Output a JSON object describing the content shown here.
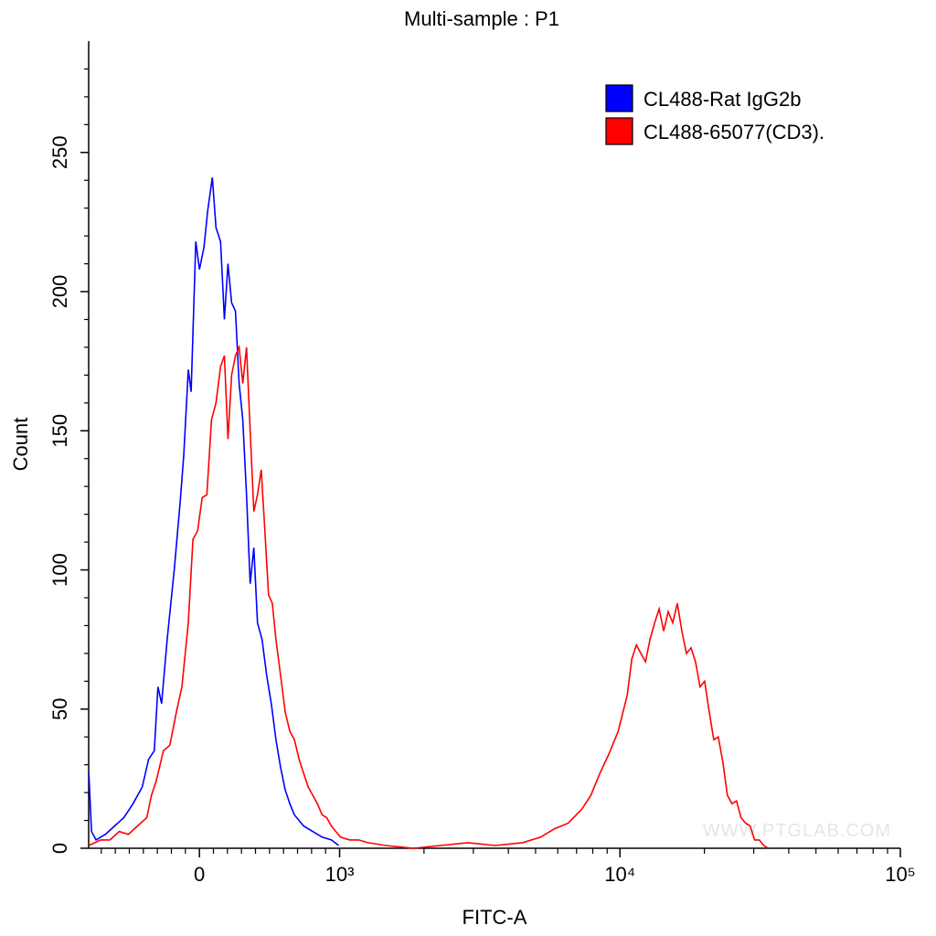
{
  "chart_data": {
    "type": "histogram-line",
    "title": "Multi-sample : P1",
    "xlabel": "FITC-A",
    "ylabel": "Count",
    "xscale": "biexponential",
    "xlim": [
      -790,
      100000
    ],
    "ylim": [
      0,
      290
    ],
    "xticks": [
      0,
      {
        "value": 1000,
        "label": "10³"
      },
      {
        "value": 10000,
        "label": "10⁴"
      },
      {
        "value": 100000,
        "label": "10⁵"
      }
    ],
    "xminorticks": [
      -700,
      -600,
      -500,
      -400,
      -300,
      -200,
      -100,
      100,
      200,
      300,
      400,
      500,
      600,
      700,
      800,
      900,
      2000,
      3000,
      4000,
      5000,
      6000,
      7000,
      8000,
      9000,
      20000,
      30000,
      40000,
      50000,
      60000,
      70000,
      80000,
      90000
    ],
    "yticks": [
      0,
      50,
      100,
      150,
      200,
      250
    ],
    "yminorticks": [
      10,
      20,
      30,
      40,
      60,
      70,
      80,
      90,
      110,
      120,
      130,
      140,
      160,
      170,
      180,
      190,
      210,
      220,
      230,
      240,
      260,
      270,
      280
    ],
    "legend": "top-right",
    "watermark": "WWW.PTGLAB.COM",
    "series": [
      {
        "name": "CL488-Rat IgG2b",
        "color": "#0000ff",
        "x": [
          -789,
          -770,
          -737,
          -671,
          -605,
          -539,
          -474,
          -408,
          -362,
          -322,
          -296,
          -270,
          -230,
          -178,
          -138,
          -112,
          -79,
          -59,
          -26,
          0,
          33,
          59,
          92,
          118,
          151,
          178,
          204,
          230,
          257,
          283,
          309,
          336,
          362,
          388,
          414,
          447,
          480,
          513,
          546,
          579,
          612,
          645,
          678,
          743,
          809,
          875,
          941,
          993
        ],
        "values": [
          27,
          6,
          3,
          5,
          8,
          11,
          16,
          22,
          32,
          35,
          58,
          52,
          75,
          101,
          124,
          141,
          172,
          164,
          218,
          208,
          216,
          229,
          241,
          223,
          218,
          190,
          210,
          196,
          193,
          167,
          154,
          127,
          95,
          108,
          81,
          75,
          62,
          52,
          39,
          29,
          21,
          16,
          12,
          8,
          6,
          4,
          3,
          1
        ]
      },
      {
        "name": "CL488-65077(CD3).",
        "color": "#ff0000",
        "x": [
          -789,
          -704,
          -638,
          -572,
          -507,
          -441,
          -375,
          -342,
          -309,
          -257,
          -211,
          -164,
          -125,
          -79,
          -46,
          -13,
          20,
          53,
          86,
          118,
          151,
          178,
          204,
          230,
          257,
          283,
          309,
          336,
          362,
          388,
          414,
          441,
          467,
          493,
          520,
          546,
          579,
          612,
          645,
          678,
          711,
          743,
          776,
          809,
          842,
          875,
          908,
          941,
          974,
          1007,
          1086,
          1170,
          1261,
          1464,
          1832,
          2293,
          2870,
          3592,
          4495,
          5219,
          5838,
          6531,
          7305,
          7873,
          8484,
          9142,
          9851,
          10616,
          11020,
          11440,
          11880,
          12330,
          12800,
          13290,
          13790,
          14320,
          14860,
          15430,
          16010,
          16630,
          17260,
          17920,
          18600,
          19310,
          20040,
          20810,
          21600,
          22420,
          23280,
          24160,
          25080,
          26040,
          27030,
          28060,
          29130,
          30230,
          31390,
          32580,
          33820
        ],
        "values": [
          1,
          3,
          3,
          6,
          5,
          8,
          11,
          19,
          24,
          35,
          37,
          49,
          58,
          81,
          111,
          114,
          126,
          127,
          154,
          160,
          173,
          177,
          147,
          170,
          177,
          180,
          167,
          180,
          150,
          121,
          127,
          136,
          114,
          91,
          88,
          75,
          62,
          49,
          42,
          39,
          32,
          27,
          22,
          19,
          16,
          12,
          11,
          8,
          6,
          4,
          3,
          3,
          2,
          1,
          0,
          1,
          2,
          1,
          2,
          4,
          7,
          9,
          14,
          19,
          27,
          34,
          42,
          55,
          68,
          73,
          70,
          67,
          75,
          81,
          86,
          78,
          85,
          81,
          88,
          78,
          70,
          72,
          67,
          58,
          60,
          49,
          39,
          40,
          31,
          19,
          16,
          17,
          11,
          9,
          8,
          3,
          3,
          1,
          0
        ]
      }
    ]
  }
}
